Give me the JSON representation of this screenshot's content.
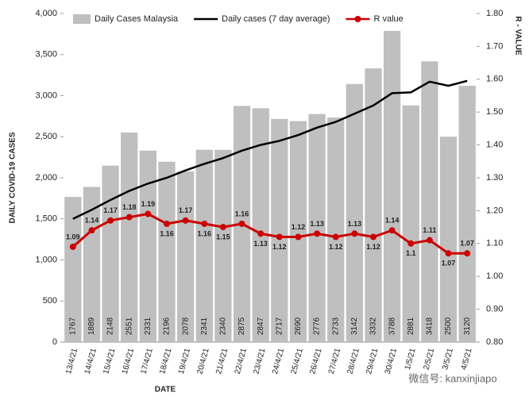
{
  "chart_data": {
    "type": "bar-line",
    "y_label": "DAILY COVID-19 CASES",
    "y2_label": "R - VALUE",
    "x_label": "DATE",
    "watermark": "微信号: kanxinjiapo",
    "categories": [
      "13/4/21",
      "14/4/21",
      "15/4/21",
      "16/4/21",
      "17/4/21",
      "18/4/21",
      "19/4/21",
      "20/4/21",
      "21/4/21",
      "22/4/21",
      "23/4/21",
      "24/4/21",
      "25/4/21",
      "26/4/21",
      "27/4/21",
      "28/4/21",
      "29/4/21",
      "30/4/21",
      "1/5/21",
      "2/5/21",
      "3/5/21",
      "4/5/21"
    ],
    "series": [
      {
        "name": "Daily Cases Malaysia",
        "color": "#bfbfbf",
        "kind": "bar",
        "values": [
          1767,
          1889,
          2148,
          2551,
          2331,
          2196,
          2078,
          2341,
          2340,
          2875,
          2847,
          2717,
          2690,
          2776,
          2733,
          3142,
          3332,
          3788,
          2881,
          3418,
          2500,
          3120
        ]
      },
      {
        "name": "Daily cases (7 day average)",
        "color": "#000000",
        "kind": "line",
        "values": [
          1500,
          1610,
          1730,
          1840,
          1930,
          2000,
          2090,
          2170,
          2240,
          2330,
          2400,
          2450,
          2520,
          2610,
          2680,
          2780,
          2880,
          3030,
          3040,
          3170,
          3120,
          3180
        ]
      },
      {
        "name": "R value",
        "color": "#cc0000",
        "kind": "line-marker",
        "axis": "y2",
        "values": [
          1.09,
          1.14,
          1.17,
          1.18,
          1.19,
          1.16,
          1.17,
          1.16,
          1.15,
          1.16,
          1.13,
          1.12,
          1.12,
          1.13,
          1.12,
          1.13,
          1.12,
          1.14,
          1.1,
          1.11,
          1.07,
          1.07
        ]
      }
    ],
    "ylim": [
      0,
      4000
    ],
    "yticks": [
      0,
      500,
      {
        "value": 1000,
        "label": "1,000"
      },
      {
        "value": 1500,
        "label": "1,500"
      },
      {
        "value": 2000,
        "label": "2,000"
      },
      {
        "value": 2500,
        "label": "2,500"
      },
      {
        "value": 3000,
        "label": "3,000"
      },
      {
        "value": 3500,
        "label": "3,500"
      },
      {
        "value": 4000,
        "label": "4,000"
      }
    ],
    "y2lim": [
      0.8,
      1.8
    ],
    "y2ticks": [
      {
        "value": 0.8,
        "label": "0.80"
      },
      {
        "value": 0.9,
        "label": "0.90"
      },
      {
        "value": 1.0,
        "label": "1.00"
      },
      {
        "value": 1.1,
        "label": "1.10"
      },
      {
        "value": 1.2,
        "label": "1.20"
      },
      {
        "value": 1.3,
        "label": "1.30"
      },
      {
        "value": 1.4,
        "label": "1.40"
      },
      {
        "value": 1.5,
        "label": "1.50"
      },
      {
        "value": 1.6,
        "label": "1.60"
      },
      {
        "value": 1.7,
        "label": "1.70"
      },
      {
        "value": 1.8,
        "label": "1.80"
      }
    ]
  }
}
